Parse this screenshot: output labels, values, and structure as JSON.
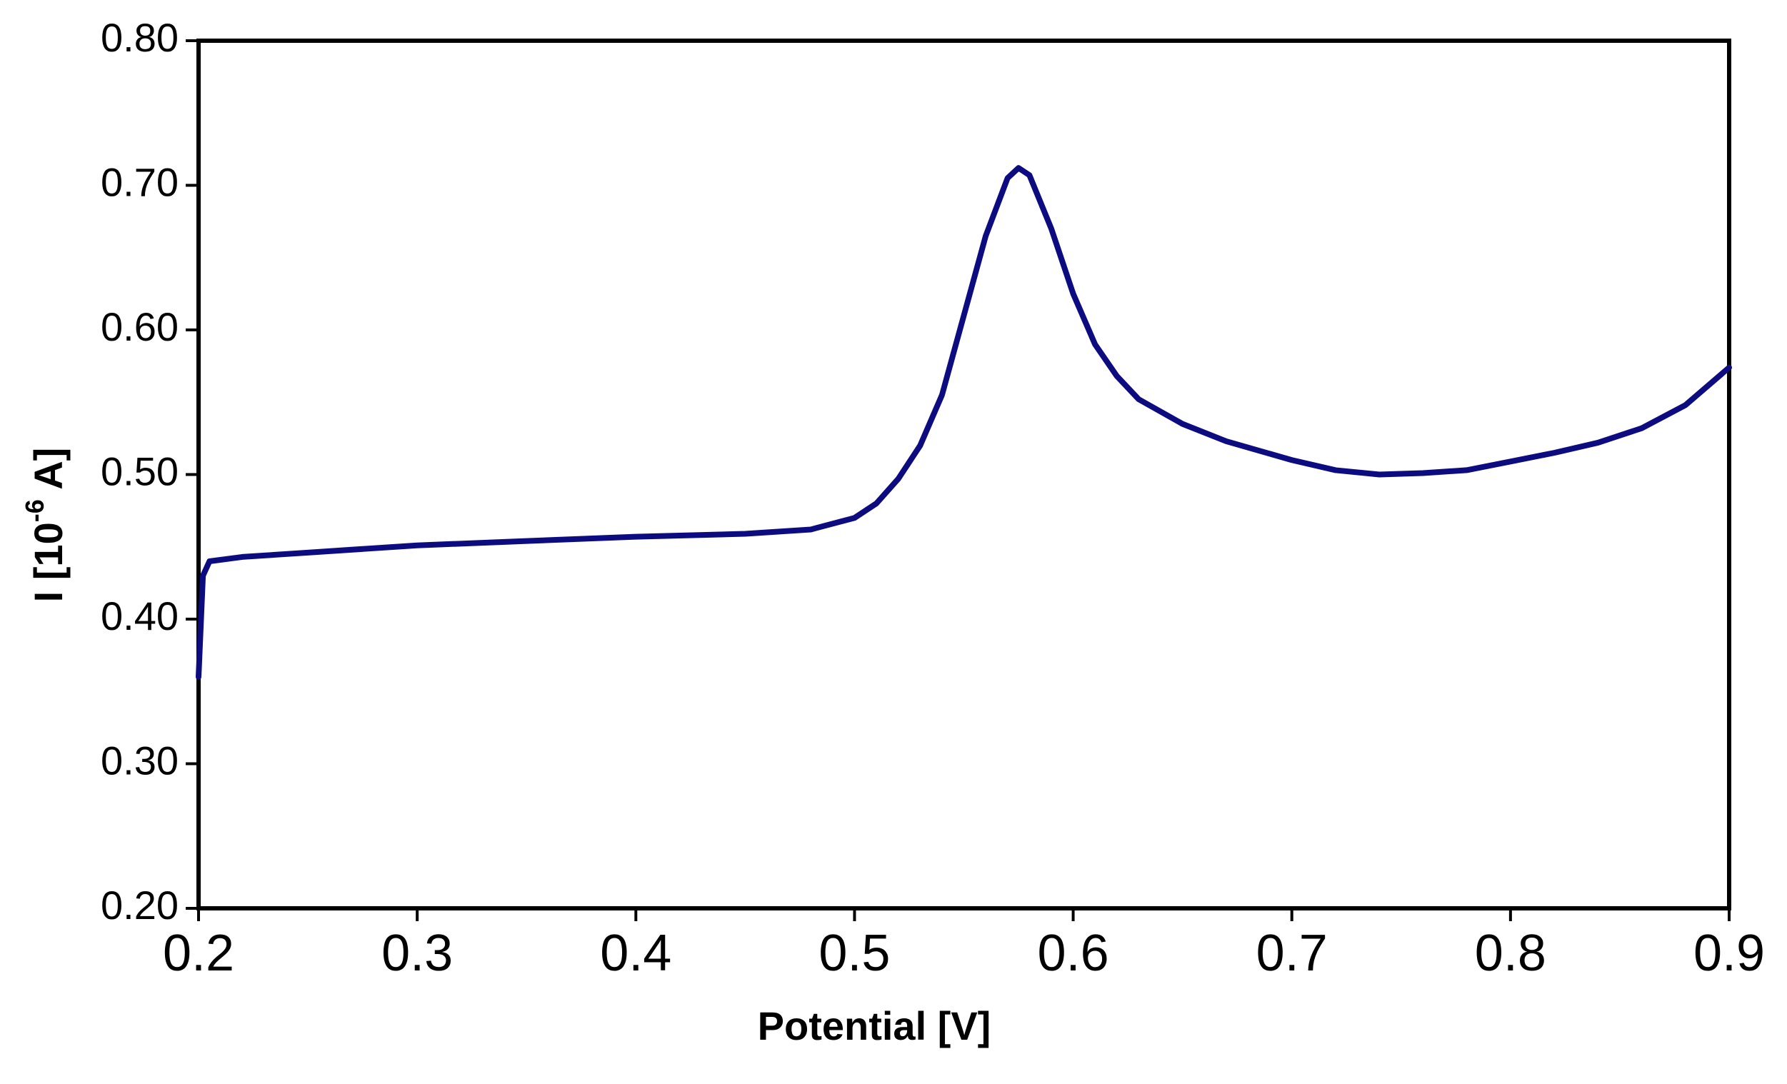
{
  "chart_data": {
    "type": "line",
    "x_label": "Potential [V]",
    "y_label": {
      "text": "I [10",
      "superscript": "-6",
      "suffix": " A]"
    },
    "x": [
      0.2,
      0.202,
      0.205,
      0.22,
      0.25,
      0.3,
      0.35,
      0.4,
      0.45,
      0.48,
      0.5,
      0.51,
      0.52,
      0.53,
      0.54,
      0.55,
      0.56,
      0.57,
      0.575,
      0.58,
      0.59,
      0.6,
      0.61,
      0.62,
      0.63,
      0.65,
      0.67,
      0.7,
      0.72,
      0.74,
      0.76,
      0.78,
      0.8,
      0.82,
      0.84,
      0.86,
      0.88,
      0.9
    ],
    "series": [
      {
        "color": "#0c0c80",
        "values": [
          0.36,
          0.43,
          0.44,
          0.443,
          0.446,
          0.451,
          0.454,
          0.457,
          0.459,
          0.462,
          0.47,
          0.48,
          0.497,
          0.52,
          0.555,
          0.61,
          0.665,
          0.705,
          0.712,
          0.707,
          0.67,
          0.625,
          0.59,
          0.568,
          0.552,
          0.535,
          0.523,
          0.51,
          0.503,
          0.5,
          0.501,
          0.503,
          0.509,
          0.515,
          0.522,
          0.532,
          0.548,
          0.574
        ]
      }
    ],
    "xlim": [
      0.2,
      0.9
    ],
    "xticks": [
      0.2,
      0.3,
      0.4,
      0.5,
      0.6,
      0.7,
      0.8,
      0.9
    ],
    "ylim": [
      0.2,
      0.8
    ],
    "yticks": [
      {
        "value": 0.2,
        "label": "0.20"
      },
      {
        "value": 0.3,
        "label": "0.30"
      },
      {
        "value": 0.4,
        "label": "0.40"
      },
      {
        "value": 0.5,
        "label": "0.50"
      },
      {
        "value": 0.6,
        "label": "0.60"
      },
      {
        "value": 0.7,
        "label": "0.70"
      },
      {
        "value": 0.8,
        "label": "0.80"
      }
    ],
    "grid": false
  }
}
